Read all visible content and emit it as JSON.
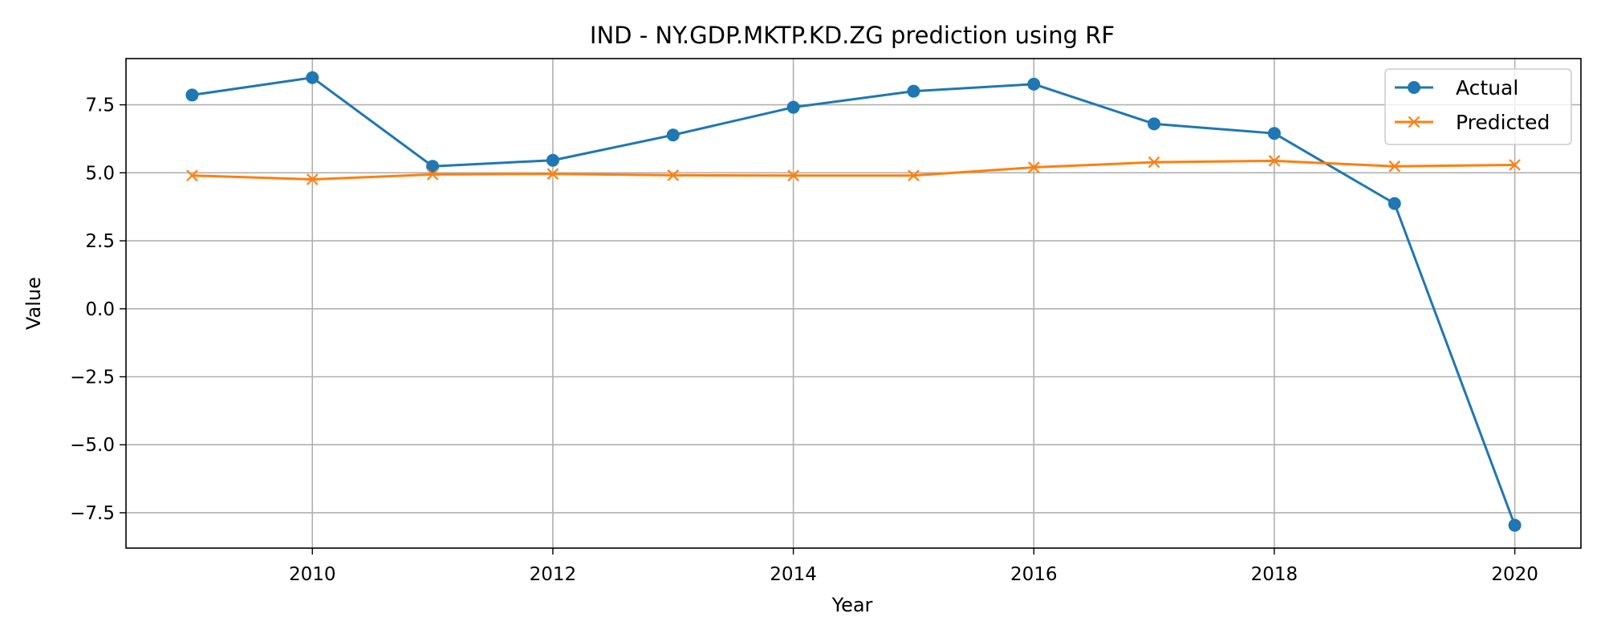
{
  "chart_data": {
    "type": "line",
    "title": "IND - NY.GDP.MKTP.KD.ZG prediction using RF",
    "xlabel": "Year",
    "ylabel": "Value",
    "x": [
      2009,
      2010,
      2011,
      2012,
      2013,
      2014,
      2015,
      2016,
      2017,
      2018,
      2019,
      2020
    ],
    "xlim": [
      2008.45,
      2020.55
    ],
    "ylim": [
      -8.8,
      9.2
    ],
    "xticks": [
      2010,
      2012,
      2014,
      2016,
      2018,
      2020
    ],
    "xtick_labels": [
      "2010",
      "2012",
      "2014",
      "2016",
      "2018",
      "2020"
    ],
    "yticks": [
      -7.5,
      -5.0,
      -2.5,
      0.0,
      2.5,
      5.0,
      7.5
    ],
    "ytick_labels": [
      "−7.5",
      "−5.0",
      "−2.5",
      "0.0",
      "2.5",
      "5.0",
      "7.5"
    ],
    "grid": true,
    "legend_position": "top-right",
    "series": [
      {
        "name": "Actual",
        "color": "#1f77b4",
        "marker": "circle",
        "values": [
          7.86,
          8.5,
          5.24,
          5.46,
          6.39,
          7.41,
          8.0,
          8.26,
          6.8,
          6.45,
          3.87,
          -7.96
        ]
      },
      {
        "name": "Predicted",
        "color": "#ff7f0e",
        "marker": "x",
        "values": [
          4.9,
          4.76,
          4.94,
          4.96,
          4.91,
          4.9,
          4.9,
          5.2,
          5.39,
          5.44,
          5.24,
          5.29
        ]
      }
    ]
  }
}
